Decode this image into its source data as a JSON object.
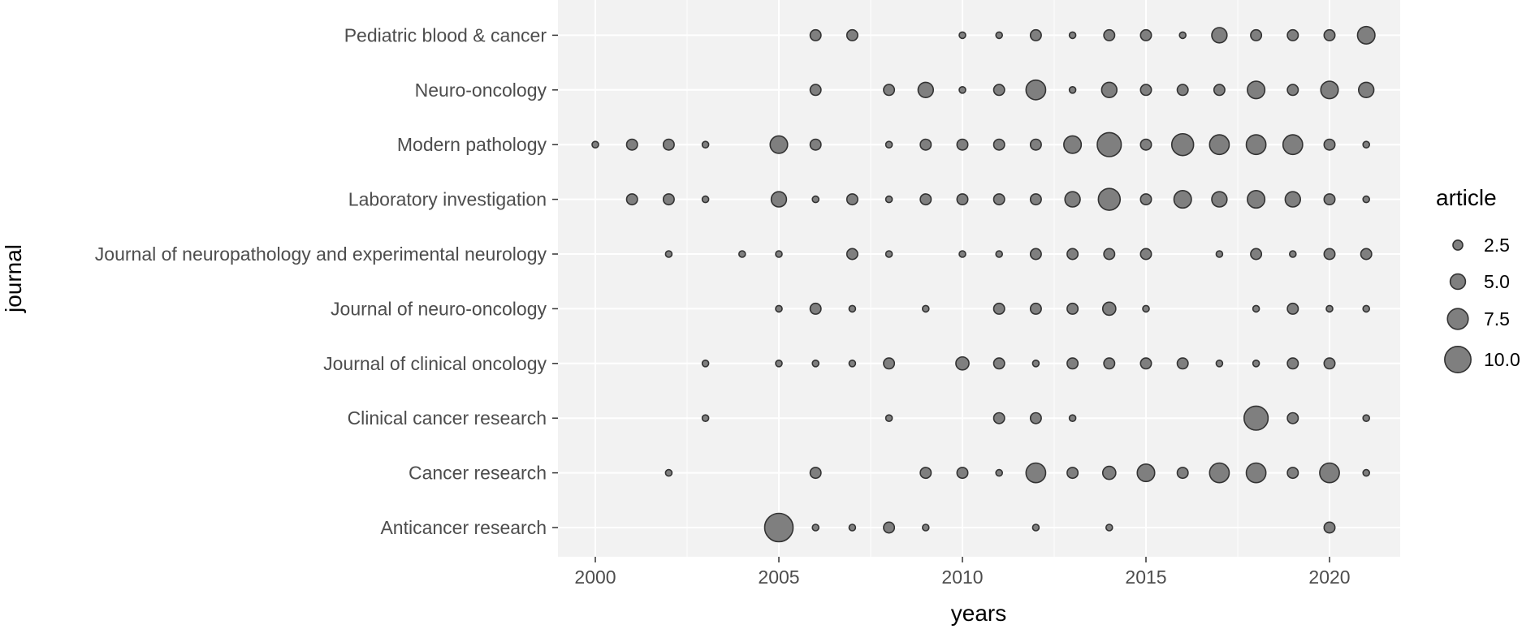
{
  "chart_data": {
    "type": "scatter",
    "xlabel": "years",
    "ylabel": "journal",
    "xlim": [
      1999,
      2022
    ],
    "x_ticks": [
      2000,
      2005,
      2010,
      2015,
      2020
    ],
    "journals": [
      "Anticancer research",
      "Cancer research",
      "Clinical cancer research",
      "Journal of clinical oncology",
      "Journal of neuro-oncology",
      "Journal of neuropathology and experimental neurology",
      "Laboratory investigation",
      "Modern pathology",
      "Neuro-oncology",
      "Pediatric blood & cancer"
    ],
    "points": [
      {
        "journal": "Pediatric blood & cancer",
        "year": 2006,
        "article": 3
      },
      {
        "journal": "Pediatric blood & cancer",
        "year": 2007,
        "article": 3
      },
      {
        "journal": "Pediatric blood & cancer",
        "year": 2010,
        "article": 1
      },
      {
        "journal": "Pediatric blood & cancer",
        "year": 2011,
        "article": 1
      },
      {
        "journal": "Pediatric blood & cancer",
        "year": 2012,
        "article": 3
      },
      {
        "journal": "Pediatric blood & cancer",
        "year": 2013,
        "article": 1
      },
      {
        "journal": "Pediatric blood & cancer",
        "year": 2014,
        "article": 3
      },
      {
        "journal": "Pediatric blood & cancer",
        "year": 2015,
        "article": 3
      },
      {
        "journal": "Pediatric blood & cancer",
        "year": 2016,
        "article": 1
      },
      {
        "journal": "Pediatric blood & cancer",
        "year": 2017,
        "article": 5
      },
      {
        "journal": "Pediatric blood & cancer",
        "year": 2018,
        "article": 3
      },
      {
        "journal": "Pediatric blood & cancer",
        "year": 2019,
        "article": 3
      },
      {
        "journal": "Pediatric blood & cancer",
        "year": 2020,
        "article": 3
      },
      {
        "journal": "Pediatric blood & cancer",
        "year": 2021,
        "article": 6
      },
      {
        "journal": "Neuro-oncology",
        "year": 2006,
        "article": 3
      },
      {
        "journal": "Neuro-oncology",
        "year": 2008,
        "article": 3
      },
      {
        "journal": "Neuro-oncology",
        "year": 2009,
        "article": 5
      },
      {
        "journal": "Neuro-oncology",
        "year": 2010,
        "article": 1
      },
      {
        "journal": "Neuro-oncology",
        "year": 2011,
        "article": 3
      },
      {
        "journal": "Neuro-oncology",
        "year": 2012,
        "article": 7
      },
      {
        "journal": "Neuro-oncology",
        "year": 2013,
        "article": 1
      },
      {
        "journal": "Neuro-oncology",
        "year": 2014,
        "article": 5
      },
      {
        "journal": "Neuro-oncology",
        "year": 2015,
        "article": 3
      },
      {
        "journal": "Neuro-oncology",
        "year": 2016,
        "article": 3
      },
      {
        "journal": "Neuro-oncology",
        "year": 2017,
        "article": 3
      },
      {
        "journal": "Neuro-oncology",
        "year": 2018,
        "article": 6
      },
      {
        "journal": "Neuro-oncology",
        "year": 2019,
        "article": 3
      },
      {
        "journal": "Neuro-oncology",
        "year": 2020,
        "article": 6
      },
      {
        "journal": "Neuro-oncology",
        "year": 2021,
        "article": 5
      },
      {
        "journal": "Modern pathology",
        "year": 2000,
        "article": 1
      },
      {
        "journal": "Modern pathology",
        "year": 2001,
        "article": 3
      },
      {
        "journal": "Modern pathology",
        "year": 2002,
        "article": 3
      },
      {
        "journal": "Modern pathology",
        "year": 2003,
        "article": 1
      },
      {
        "journal": "Modern pathology",
        "year": 2005,
        "article": 6
      },
      {
        "journal": "Modern pathology",
        "year": 2006,
        "article": 3
      },
      {
        "journal": "Modern pathology",
        "year": 2008,
        "article": 1
      },
      {
        "journal": "Modern pathology",
        "year": 2009,
        "article": 3
      },
      {
        "journal": "Modern pathology",
        "year": 2010,
        "article": 3
      },
      {
        "journal": "Modern pathology",
        "year": 2011,
        "article": 3
      },
      {
        "journal": "Modern pathology",
        "year": 2012,
        "article": 3
      },
      {
        "journal": "Modern pathology",
        "year": 2013,
        "article": 6
      },
      {
        "journal": "Modern pathology",
        "year": 2014,
        "article": 9
      },
      {
        "journal": "Modern pathology",
        "year": 2015,
        "article": 3
      },
      {
        "journal": "Modern pathology",
        "year": 2016,
        "article": 8
      },
      {
        "journal": "Modern pathology",
        "year": 2017,
        "article": 7
      },
      {
        "journal": "Modern pathology",
        "year": 2018,
        "article": 7
      },
      {
        "journal": "Modern pathology",
        "year": 2019,
        "article": 7
      },
      {
        "journal": "Modern pathology",
        "year": 2020,
        "article": 3
      },
      {
        "journal": "Modern pathology",
        "year": 2021,
        "article": 1
      },
      {
        "journal": "Laboratory investigation",
        "year": 2001,
        "article": 3
      },
      {
        "journal": "Laboratory investigation",
        "year": 2002,
        "article": 3
      },
      {
        "journal": "Laboratory investigation",
        "year": 2003,
        "article": 1
      },
      {
        "journal": "Laboratory investigation",
        "year": 2005,
        "article": 5
      },
      {
        "journal": "Laboratory investigation",
        "year": 2006,
        "article": 1
      },
      {
        "journal": "Laboratory investigation",
        "year": 2007,
        "article": 3
      },
      {
        "journal": "Laboratory investigation",
        "year": 2008,
        "article": 1
      },
      {
        "journal": "Laboratory investigation",
        "year": 2009,
        "article": 3
      },
      {
        "journal": "Laboratory investigation",
        "year": 2010,
        "article": 3
      },
      {
        "journal": "Laboratory investigation",
        "year": 2011,
        "article": 3
      },
      {
        "journal": "Laboratory investigation",
        "year": 2012,
        "article": 3
      },
      {
        "journal": "Laboratory investigation",
        "year": 2013,
        "article": 5
      },
      {
        "journal": "Laboratory investigation",
        "year": 2014,
        "article": 8
      },
      {
        "journal": "Laboratory investigation",
        "year": 2015,
        "article": 3
      },
      {
        "journal": "Laboratory investigation",
        "year": 2016,
        "article": 6
      },
      {
        "journal": "Laboratory investigation",
        "year": 2017,
        "article": 5
      },
      {
        "journal": "Laboratory investigation",
        "year": 2018,
        "article": 6
      },
      {
        "journal": "Laboratory investigation",
        "year": 2019,
        "article": 5
      },
      {
        "journal": "Laboratory investigation",
        "year": 2020,
        "article": 3
      },
      {
        "journal": "Laboratory investigation",
        "year": 2021,
        "article": 1
      },
      {
        "journal": "Journal of neuropathology and experimental neurology",
        "year": 2002,
        "article": 1
      },
      {
        "journal": "Journal of neuropathology and experimental neurology",
        "year": 2004,
        "article": 1
      },
      {
        "journal": "Journal of neuropathology and experimental neurology",
        "year": 2005,
        "article": 1
      },
      {
        "journal": "Journal of neuropathology and experimental neurology",
        "year": 2007,
        "article": 3
      },
      {
        "journal": "Journal of neuropathology and experimental neurology",
        "year": 2008,
        "article": 1
      },
      {
        "journal": "Journal of neuropathology and experimental neurology",
        "year": 2010,
        "article": 1
      },
      {
        "journal": "Journal of neuropathology and experimental neurology",
        "year": 2011,
        "article": 1
      },
      {
        "journal": "Journal of neuropathology and experimental neurology",
        "year": 2012,
        "article": 3
      },
      {
        "journal": "Journal of neuropathology and experimental neurology",
        "year": 2013,
        "article": 3
      },
      {
        "journal": "Journal of neuropathology and experimental neurology",
        "year": 2014,
        "article": 3
      },
      {
        "journal": "Journal of neuropathology and experimental neurology",
        "year": 2015,
        "article": 3
      },
      {
        "journal": "Journal of neuropathology and experimental neurology",
        "year": 2017,
        "article": 1
      },
      {
        "journal": "Journal of neuropathology and experimental neurology",
        "year": 2018,
        "article": 3
      },
      {
        "journal": "Journal of neuropathology and experimental neurology",
        "year": 2019,
        "article": 1
      },
      {
        "journal": "Journal of neuropathology and experimental neurology",
        "year": 2020,
        "article": 3
      },
      {
        "journal": "Journal of neuropathology and experimental neurology",
        "year": 2021,
        "article": 3
      },
      {
        "journal": "Journal of neuro-oncology",
        "year": 2005,
        "article": 1
      },
      {
        "journal": "Journal of neuro-oncology",
        "year": 2006,
        "article": 3
      },
      {
        "journal": "Journal of neuro-oncology",
        "year": 2007,
        "article": 1
      },
      {
        "journal": "Journal of neuro-oncology",
        "year": 2009,
        "article": 1
      },
      {
        "journal": "Journal of neuro-oncology",
        "year": 2011,
        "article": 3
      },
      {
        "journal": "Journal of neuro-oncology",
        "year": 2012,
        "article": 3
      },
      {
        "journal": "Journal of neuro-oncology",
        "year": 2013,
        "article": 3
      },
      {
        "journal": "Journal of neuro-oncology",
        "year": 2014,
        "article": 4
      },
      {
        "journal": "Journal of neuro-oncology",
        "year": 2015,
        "article": 1
      },
      {
        "journal": "Journal of neuro-oncology",
        "year": 2018,
        "article": 1
      },
      {
        "journal": "Journal of neuro-oncology",
        "year": 2019,
        "article": 3
      },
      {
        "journal": "Journal of neuro-oncology",
        "year": 2020,
        "article": 1
      },
      {
        "journal": "Journal of neuro-oncology",
        "year": 2021,
        "article": 1
      },
      {
        "journal": "Journal of clinical oncology",
        "year": 2003,
        "article": 1
      },
      {
        "journal": "Journal of clinical oncology",
        "year": 2005,
        "article": 1
      },
      {
        "journal": "Journal of clinical oncology",
        "year": 2006,
        "article": 1
      },
      {
        "journal": "Journal of clinical oncology",
        "year": 2007,
        "article": 1
      },
      {
        "journal": "Journal of clinical oncology",
        "year": 2008,
        "article": 3
      },
      {
        "journal": "Journal of clinical oncology",
        "year": 2010,
        "article": 4
      },
      {
        "journal": "Journal of clinical oncology",
        "year": 2011,
        "article": 3
      },
      {
        "journal": "Journal of clinical oncology",
        "year": 2012,
        "article": 1
      },
      {
        "journal": "Journal of clinical oncology",
        "year": 2013,
        "article": 3
      },
      {
        "journal": "Journal of clinical oncology",
        "year": 2014,
        "article": 3
      },
      {
        "journal": "Journal of clinical oncology",
        "year": 2015,
        "article": 3
      },
      {
        "journal": "Journal of clinical oncology",
        "year": 2016,
        "article": 3
      },
      {
        "journal": "Journal of clinical oncology",
        "year": 2017,
        "article": 1
      },
      {
        "journal": "Journal of clinical oncology",
        "year": 2018,
        "article": 1
      },
      {
        "journal": "Journal of clinical oncology",
        "year": 2019,
        "article": 3
      },
      {
        "journal": "Journal of clinical oncology",
        "year": 2020,
        "article": 3
      },
      {
        "journal": "Clinical cancer research",
        "year": 2003,
        "article": 1
      },
      {
        "journal": "Clinical cancer research",
        "year": 2008,
        "article": 1
      },
      {
        "journal": "Clinical cancer research",
        "year": 2011,
        "article": 3
      },
      {
        "journal": "Clinical cancer research",
        "year": 2012,
        "article": 3
      },
      {
        "journal": "Clinical cancer research",
        "year": 2013,
        "article": 1
      },
      {
        "journal": "Clinical cancer research",
        "year": 2018,
        "article": 9
      },
      {
        "journal": "Clinical cancer research",
        "year": 2019,
        "article": 3
      },
      {
        "journal": "Clinical cancer research",
        "year": 2021,
        "article": 1
      },
      {
        "journal": "Cancer research",
        "year": 2002,
        "article": 1
      },
      {
        "journal": "Cancer research",
        "year": 2006,
        "article": 3
      },
      {
        "journal": "Cancer research",
        "year": 2009,
        "article": 3
      },
      {
        "journal": "Cancer research",
        "year": 2010,
        "article": 3
      },
      {
        "journal": "Cancer research",
        "year": 2011,
        "article": 1
      },
      {
        "journal": "Cancer research",
        "year": 2012,
        "article": 7
      },
      {
        "journal": "Cancer research",
        "year": 2013,
        "article": 3
      },
      {
        "journal": "Cancer research",
        "year": 2014,
        "article": 4
      },
      {
        "journal": "Cancer research",
        "year": 2015,
        "article": 6
      },
      {
        "journal": "Cancer research",
        "year": 2016,
        "article": 3
      },
      {
        "journal": "Cancer research",
        "year": 2017,
        "article": 7
      },
      {
        "journal": "Cancer research",
        "year": 2018,
        "article": 7
      },
      {
        "journal": "Cancer research",
        "year": 2019,
        "article": 3
      },
      {
        "journal": "Cancer research",
        "year": 2020,
        "article": 7
      },
      {
        "journal": "Cancer research",
        "year": 2021,
        "article": 1
      },
      {
        "journal": "Anticancer research",
        "year": 2005,
        "article": 11
      },
      {
        "journal": "Anticancer research",
        "year": 2006,
        "article": 1
      },
      {
        "journal": "Anticancer research",
        "year": 2007,
        "article": 1
      },
      {
        "journal": "Anticancer research",
        "year": 2008,
        "article": 3
      },
      {
        "journal": "Anticancer research",
        "year": 2009,
        "article": 1
      },
      {
        "journal": "Anticancer research",
        "year": 2012,
        "article": 1
      },
      {
        "journal": "Anticancer research",
        "year": 2014,
        "article": 1
      },
      {
        "journal": "Anticancer research",
        "year": 2020,
        "article": 3
      }
    ],
    "legend": {
      "title": "article",
      "entries": [
        {
          "label": "2.5",
          "value": 2.5
        },
        {
          "label": "5.0",
          "value": 5.0
        },
        {
          "label": "7.5",
          "value": 7.5
        },
        {
          "label": "10.0",
          "value": 10.0
        }
      ],
      "position": "right"
    },
    "size_range": [
      1,
      11
    ],
    "grid": true,
    "colors": {
      "panel_background": "#f2f2f2",
      "grid_major": "#ffffff",
      "point_fill": "#7f7f7f",
      "point_stroke": "#333333",
      "tick_text": "#4d4d4d",
      "title_text": "#000000"
    }
  }
}
